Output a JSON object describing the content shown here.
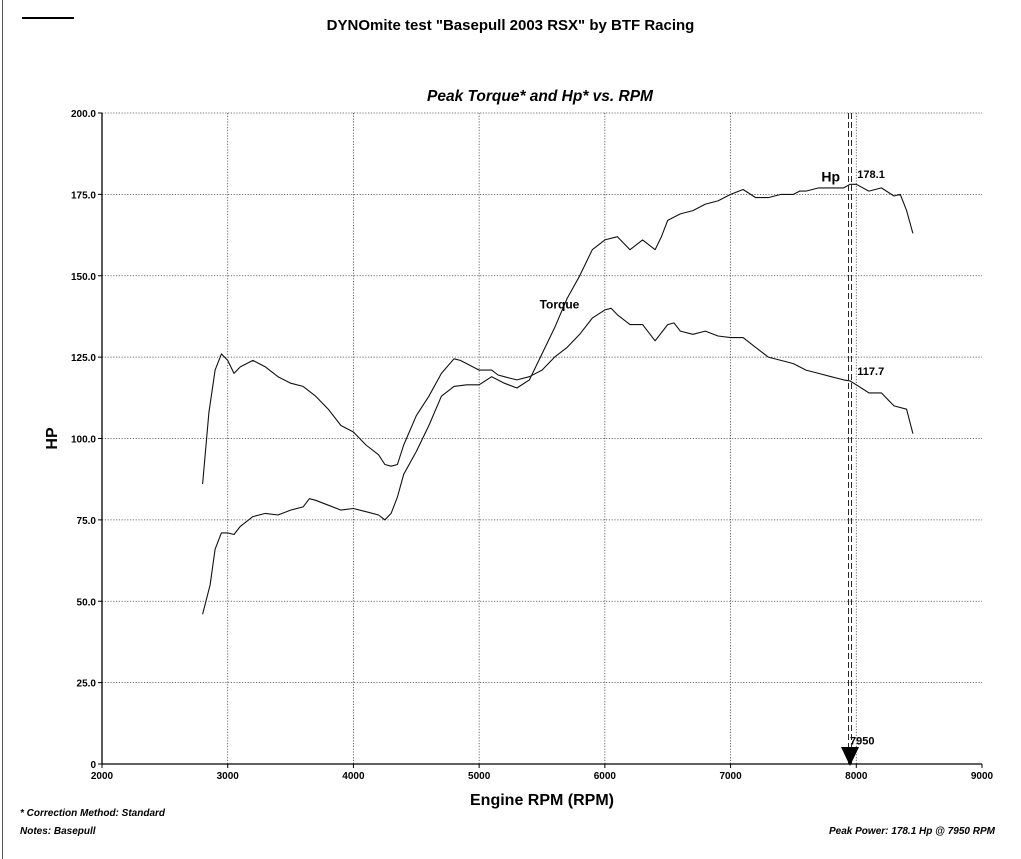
{
  "header": {
    "title": "DYNOmite test \"Basepull 2003 RSX\" by BTF Racing"
  },
  "footer": {
    "correction": "* Correction Method: Standard",
    "notes": "Notes: Basepull",
    "peak_power": "Peak Power: 178.1 Hp @ 7950 RPM"
  },
  "chart_data": {
    "type": "line",
    "title": "Peak Torque* and Hp* vs. RPM",
    "xlabel": "Engine RPM (RPM)",
    "ylabel": "HP",
    "xlim": [
      2000,
      9000
    ],
    "ylim": [
      0,
      200
    ],
    "x_ticks": [
      "2000",
      "3000",
      "4000",
      "5000",
      "6000",
      "7000",
      "8000",
      "9000"
    ],
    "y_ticks": [
      "0",
      "25.0",
      "50.0",
      "75.0",
      "100.0",
      "125.0",
      "150.0",
      "175.0",
      "200.0"
    ],
    "grid": true,
    "series": [
      {
        "name": "Hp",
        "x": [
          2800,
          2860,
          2900,
          2950,
          3000,
          3050,
          3100,
          3200,
          3300,
          3400,
          3500,
          3600,
          3650,
          3700,
          3800,
          3900,
          4000,
          4100,
          4200,
          4250,
          4300,
          4350,
          4400,
          4500,
          4600,
          4700,
          4800,
          4900,
          5000,
          5100,
          5200,
          5300,
          5400,
          5500,
          5600,
          5700,
          5800,
          5900,
          6000,
          6100,
          6200,
          6300,
          6400,
          6450,
          6500,
          6600,
          6700,
          6800,
          6900,
          7000,
          7100,
          7200,
          7300,
          7400,
          7500,
          7550,
          7600,
          7700,
          7800,
          7900,
          7950,
          8000,
          8100,
          8200,
          8300,
          8350,
          8400,
          8450
        ],
        "y": [
          46,
          55,
          66,
          71,
          71,
          70.5,
          73,
          76,
          77,
          76.5,
          78,
          79,
          81.5,
          81,
          79.5,
          78,
          78.5,
          77.5,
          76.5,
          75,
          77,
          82,
          89,
          96,
          104,
          113,
          116,
          116.5,
          116.5,
          119,
          117,
          115.5,
          118,
          126,
          134,
          143,
          150,
          158,
          161,
          162,
          158,
          161,
          158,
          162,
          167,
          169,
          170,
          172,
          173,
          175,
          176.5,
          174,
          174,
          175,
          175,
          176,
          176,
          177,
          177,
          177,
          178.1,
          178.1,
          176,
          177,
          174.5,
          175,
          170,
          163
        ]
      },
      {
        "name": "Torque",
        "x": [
          2800,
          2850,
          2900,
          2950,
          3000,
          3050,
          3100,
          3200,
          3300,
          3400,
          3500,
          3600,
          3700,
          3800,
          3900,
          4000,
          4100,
          4200,
          4250,
          4300,
          4350,
          4400,
          4500,
          4600,
          4700,
          4800,
          4850,
          4900,
          5000,
          5100,
          5150,
          5200,
          5300,
          5400,
          5500,
          5600,
          5700,
          5800,
          5900,
          6000,
          6050,
          6100,
          6200,
          6300,
          6400,
          6500,
          6550,
          6600,
          6700,
          6800,
          6900,
          7000,
          7100,
          7200,
          7300,
          7400,
          7500,
          7600,
          7700,
          7800,
          7900,
          7950,
          8000,
          8100,
          8200,
          8300,
          8400,
          8450
        ],
        "y": [
          86,
          108,
          121,
          126,
          124,
          120,
          122,
          124,
          122,
          119,
          117,
          116,
          113,
          109,
          104,
          102,
          98,
          95,
          92,
          91.5,
          92,
          98,
          107,
          113,
          120,
          124.5,
          124,
          123,
          121,
          121,
          119.5,
          119,
          118,
          119,
          121,
          125,
          128,
          132,
          137,
          139.5,
          140,
          138,
          135,
          135,
          130,
          135,
          135.5,
          133,
          132,
          133,
          131.5,
          131,
          131,
          128,
          125,
          124,
          123,
          121,
          120,
          119,
          118,
          117.7,
          116.5,
          114,
          114,
          110,
          109,
          101.5
        ]
      }
    ],
    "annotations": [
      {
        "text": "Hp",
        "x": 7850,
        "y": 179
      },
      {
        "text": "178.1",
        "x": 8000,
        "y": 180
      },
      {
        "text": "Torque",
        "x": 5600,
        "y": 140
      },
      {
        "text": "117.7",
        "x": 8000,
        "y": 119.5
      },
      {
        "text": "7950",
        "x": 7950,
        "y": 6
      }
    ],
    "marker": {
      "x": 7950,
      "label": "7950"
    }
  }
}
